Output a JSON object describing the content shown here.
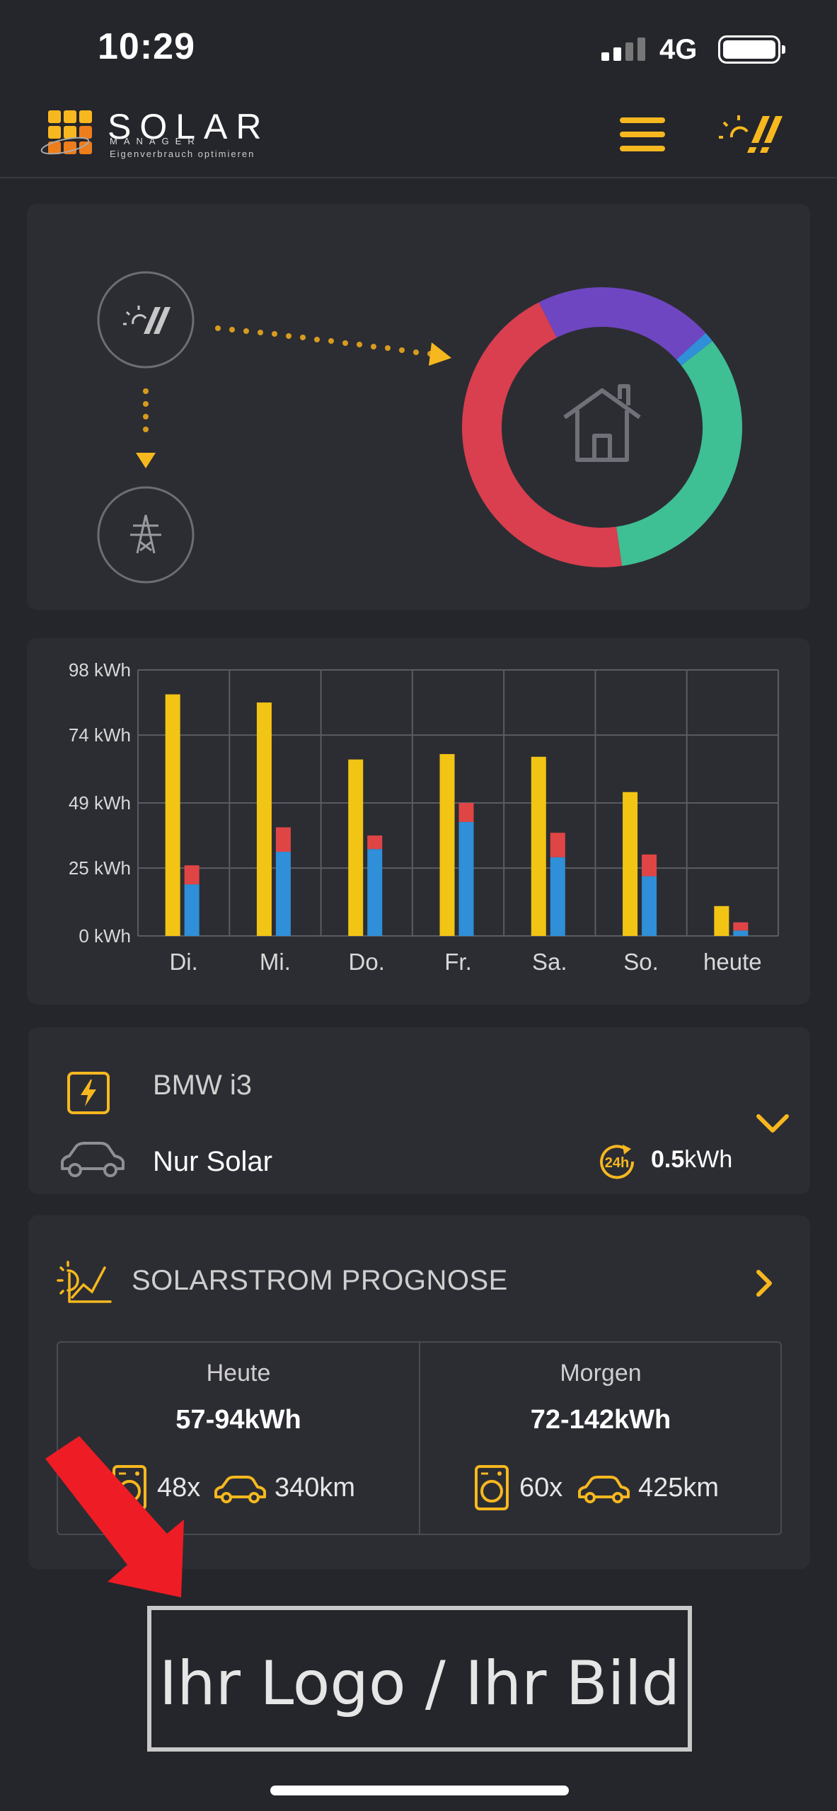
{
  "status_bar": {
    "time": "10:29",
    "network": "4G"
  },
  "brand": {
    "name": "SOLAR",
    "sub": "MANAGER",
    "tagline": "Eigenverbrauch optimieren"
  },
  "colors": {
    "accent": "#f7b81f",
    "green": "#3fbf94",
    "purple": "#6e46c1",
    "red": "#d93f4f",
    "bar_yellow": "#f2c414",
    "bar_blue": "#2f8fd8",
    "bar_red": "#e04545",
    "arrow": "#ee1c25"
  },
  "energy_flow": {
    "donut_segments": [
      {
        "name": "green",
        "fraction": 0.333
      },
      {
        "name": "red",
        "fraction": 0.448
      },
      {
        "name": "purple",
        "fraction": 0.207
      },
      {
        "name": "blue",
        "fraction": 0.012
      }
    ]
  },
  "chart_data": {
    "type": "bar",
    "categories": [
      "Di.",
      "Mi.",
      "Do.",
      "Fr.",
      "Sa.",
      "So.",
      "heute"
    ],
    "y_tick_labels": [
      "98 kWh",
      "74 kWh",
      "49 kWh",
      "25 kWh",
      "0 kWh"
    ],
    "ylim": [
      0,
      98
    ],
    "y_ticks": [
      98,
      74,
      49,
      25,
      0
    ],
    "grid": true,
    "series": [
      {
        "values": [
          89,
          86,
          65,
          67,
          66,
          53,
          11
        ]
      },
      {
        "values": [
          19,
          31,
          32,
          42,
          29,
          22,
          2
        ]
      },
      {
        "values": [
          7,
          9,
          5,
          7,
          9,
          8,
          3
        ]
      }
    ]
  },
  "ev": {
    "name": "BMW i3",
    "mode": "Nur Solar",
    "period": "24h",
    "energy_value": "0.5",
    "energy_unit": "kWh"
  },
  "forecast": {
    "title": "SOLARSTROM PROGNOSE",
    "today": {
      "label": "Heute",
      "range": "57-94kWh",
      "washes": "48x",
      "km": "340km"
    },
    "tomorrow": {
      "label": "Morgen",
      "range": "72-142kWh",
      "washes": "60x",
      "km": "425km"
    }
  },
  "logo_placeholder": "Ihr Logo / Ihr Bild"
}
